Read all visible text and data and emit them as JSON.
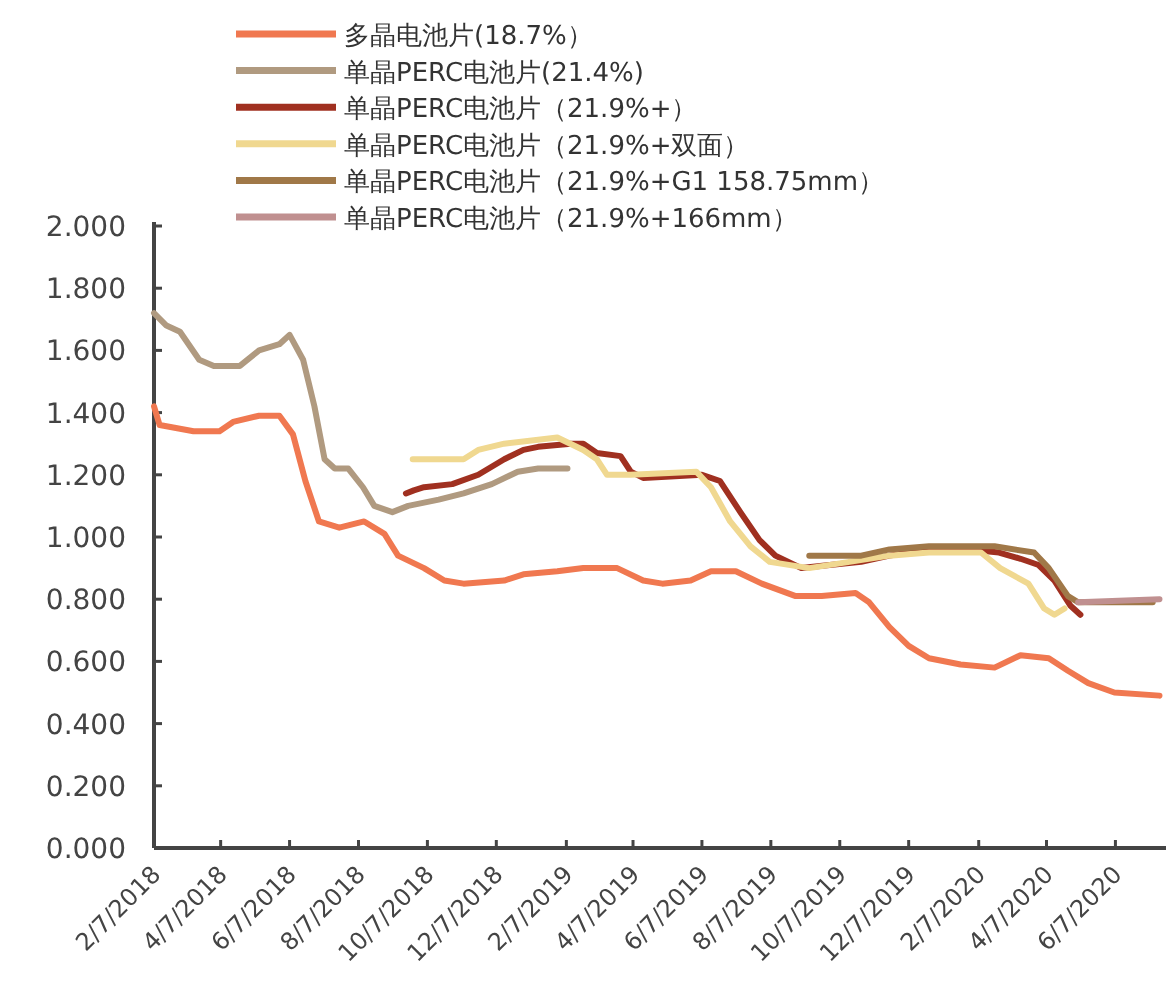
{
  "chart_data": {
    "type": "line",
    "legend": "top",
    "xlim": [
      "2018-02-07",
      "2020-07-20"
    ],
    "xticks": [
      {
        "value": "2018-02-07",
        "label": "2/7/2018"
      },
      {
        "value": "2018-04-07",
        "label": "4/7/2018"
      },
      {
        "value": "2018-06-07",
        "label": "6/7/2018"
      },
      {
        "value": "2018-08-07",
        "label": "8/7/2018"
      },
      {
        "value": "2018-10-07",
        "label": "10/7/2018"
      },
      {
        "value": "2018-12-07",
        "label": "12/7/2018"
      },
      {
        "value": "2019-02-07",
        "label": "2/7/2019"
      },
      {
        "value": "2019-04-07",
        "label": "4/7/2019"
      },
      {
        "value": "2019-06-07",
        "label": "6/7/2019"
      },
      {
        "value": "2019-08-07",
        "label": "8/7/2019"
      },
      {
        "value": "2019-10-07",
        "label": "10/7/2019"
      },
      {
        "value": "2019-12-07",
        "label": "12/7/2019"
      },
      {
        "value": "2020-02-07",
        "label": "2/7/2020"
      },
      {
        "value": "2020-04-07",
        "label": "4/7/2020"
      },
      {
        "value": "2020-06-07",
        "label": "6/7/2020"
      }
    ],
    "ylim": [
      0,
      2
    ],
    "yticks": [
      {
        "value": 0,
        "label": "0.000"
      },
      {
        "value": 0.2,
        "label": "0.200"
      },
      {
        "value": 0.4,
        "label": "0.400"
      },
      {
        "value": 0.6,
        "label": "0.600"
      },
      {
        "value": 0.8,
        "label": "0.800"
      },
      {
        "value": 1,
        "label": "1.000"
      },
      {
        "value": 1.2,
        "label": "1.200"
      },
      {
        "value": 1.4,
        "label": "1.400"
      },
      {
        "value": 1.6,
        "label": "1.600"
      },
      {
        "value": 1.8,
        "label": "1.800"
      },
      {
        "value": 2,
        "label": "2.000"
      }
    ],
    "series": [
      {
        "name": "多晶电池片(18.7%）",
        "color": "#f07850",
        "x": [
          "2018-02-07",
          "2018-02-12",
          "2018-03-14",
          "2018-04-06",
          "2018-04-18",
          "2018-05-11",
          "2018-05-29",
          "2018-06-10",
          "2018-06-21",
          "2018-07-03",
          "2018-07-21",
          "2018-08-12",
          "2018-08-30",
          "2018-09-11",
          "2018-10-04",
          "2018-10-22",
          "2018-11-08",
          "2018-12-14",
          "2018-12-31",
          "2019-01-30",
          "2019-02-22",
          "2019-03-24",
          "2019-04-16",
          "2019-05-03",
          "2019-05-28",
          "2019-06-15",
          "2019-07-07",
          "2019-07-30",
          "2019-08-29",
          "2019-09-21",
          "2019-10-21",
          "2019-11-02",
          "2019-11-20",
          "2019-12-07",
          "2019-12-25",
          "2020-01-22",
          "2020-02-21",
          "2020-03-15",
          "2020-04-09",
          "2020-04-26",
          "2020-05-14",
          "2020-06-06",
          "2020-07-16"
        ],
        "values": [
          1.42,
          1.36,
          1.34,
          1.34,
          1.37,
          1.39,
          1.39,
          1.33,
          1.18,
          1.05,
          1.03,
          1.05,
          1.01,
          0.94,
          0.9,
          0.86,
          0.85,
          0.86,
          0.88,
          0.89,
          0.9,
          0.9,
          0.86,
          0.85,
          0.86,
          0.89,
          0.89,
          0.85,
          0.81,
          0.81,
          0.82,
          0.79,
          0.71,
          0.65,
          0.61,
          0.59,
          0.58,
          0.62,
          0.61,
          0.57,
          0.53,
          0.5,
          0.49
        ]
      },
      {
        "name": "单晶PERC电池片(21.4%)",
        "color": "#b09a80",
        "x": [
          "2018-02-07",
          "2018-02-18",
          "2018-03-02",
          "2018-03-19",
          "2018-04-01",
          "2018-04-24",
          "2018-05-11",
          "2018-05-29",
          "2018-06-07",
          "2018-06-19",
          "2018-06-29",
          "2018-07-08",
          "2018-07-17",
          "2018-07-29",
          "2018-08-11",
          "2018-08-21",
          "2018-09-06",
          "2018-09-20",
          "2018-10-17",
          "2018-11-08",
          "2018-12-03",
          "2018-12-26",
          "2019-01-13",
          "2019-02-08"
        ],
        "values": [
          1.72,
          1.68,
          1.66,
          1.57,
          1.55,
          1.55,
          1.6,
          1.62,
          1.65,
          1.57,
          1.42,
          1.25,
          1.22,
          1.22,
          1.16,
          1.1,
          1.08,
          1.1,
          1.12,
          1.14,
          1.17,
          1.21,
          1.22,
          1.22
        ]
      },
      {
        "name": "单晶PERC电池片（21.9%+）",
        "color": "#a03020",
        "x": [
          "2018-09-18",
          "2018-09-25",
          "2018-10-04",
          "2018-10-29",
          "2018-11-21",
          "2018-12-14",
          "2018-12-31",
          "2019-01-13",
          "2019-02-11",
          "2019-02-22",
          "2019-03-06",
          "2019-03-27",
          "2019-04-05",
          "2019-04-16",
          "2019-06-07",
          "2019-06-23",
          "2019-07-11",
          "2019-07-28",
          "2019-08-11",
          "2019-09-03",
          "2019-09-28",
          "2019-10-26",
          "2019-11-20",
          "2019-12-25",
          "2020-01-29",
          "2020-02-25",
          "2020-03-15",
          "2020-03-31",
          "2020-04-14",
          "2020-04-28",
          "2020-05-07"
        ],
        "values": [
          1.14,
          1.15,
          1.16,
          1.17,
          1.2,
          1.25,
          1.28,
          1.29,
          1.3,
          1.3,
          1.27,
          1.26,
          1.21,
          1.19,
          1.2,
          1.18,
          1.08,
          0.99,
          0.94,
          0.9,
          0.91,
          0.92,
          0.94,
          0.96,
          0.96,
          0.95,
          0.93,
          0.91,
          0.86,
          0.78,
          0.75
        ]
      },
      {
        "name": "单晶PERC电池片（21.9%+双面）",
        "color": "#f0d890",
        "x": [
          "2018-09-24",
          "2018-11-08",
          "2018-11-21",
          "2018-12-14",
          "2019-01-30",
          "2019-02-22",
          "2019-03-06",
          "2019-03-15",
          "2019-04-05",
          "2019-06-02",
          "2019-06-15",
          "2019-07-02",
          "2019-07-20",
          "2019-08-06",
          "2019-09-10",
          "2019-11-20",
          "2019-12-25",
          "2020-02-09",
          "2020-02-26",
          "2020-03-22",
          "2020-04-05",
          "2020-04-14",
          "2020-04-23"
        ],
        "values": [
          1.25,
          1.25,
          1.28,
          1.3,
          1.32,
          1.28,
          1.25,
          1.2,
          1.2,
          1.21,
          1.16,
          1.05,
          0.97,
          0.92,
          0.9,
          0.94,
          0.95,
          0.95,
          0.9,
          0.85,
          0.77,
          0.75,
          0.77
        ]
      },
      {
        "name": "单晶PERC电池片（21.9%+G1 158.75mm）",
        "color": "#a07848",
        "x": [
          "2019-09-10",
          "2019-10-26",
          "2019-11-20",
          "2019-12-25",
          "2020-02-21",
          "2020-03-27",
          "2020-04-09",
          "2020-04-26",
          "2020-05-05",
          "2020-07-10"
        ],
        "values": [
          0.94,
          0.94,
          0.96,
          0.97,
          0.97,
          0.95,
          0.9,
          0.81,
          0.79,
          0.79
        ]
      },
      {
        "name": "单晶PERC电池片（21.9%+166mm）",
        "color": "#c09090",
        "x": [
          "2020-05-05",
          "2020-07-16"
        ],
        "values": [
          0.79,
          0.8
        ]
      }
    ]
  }
}
